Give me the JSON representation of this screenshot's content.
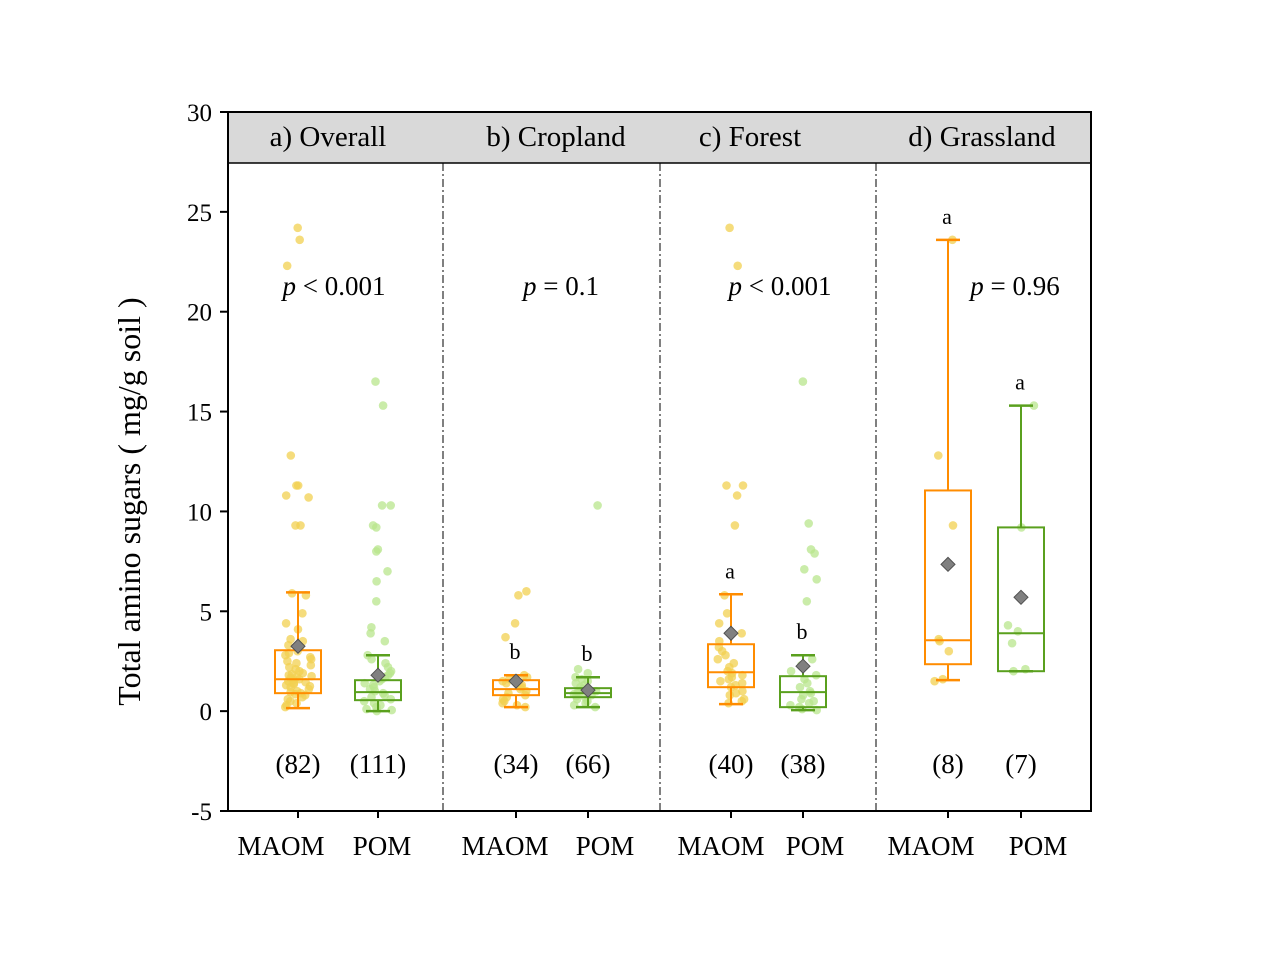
{
  "chart_data": {
    "type": "box",
    "ylabel": "Total amino sugars ( mg/g soil )",
    "ylim": [
      -5,
      30
    ],
    "yticks": [
      -5,
      0,
      5,
      10,
      15,
      20,
      25,
      30
    ],
    "ytick_labels": [
      "-5",
      "0",
      "5",
      "10",
      "15",
      "20",
      "25",
      "30"
    ],
    "colors": {
      "MAOM": "#ff8c00",
      "POM": "#5aa01e",
      "MAOM_points": "#f2d050",
      "POM_points": "#b8e68c",
      "mean_marker": "#808080",
      "header_bg": "#d9d9d9"
    },
    "panels": [
      {
        "title": "a) Overall",
        "pvalue_italic": "p",
        "pvalue_rest": " < 0.001",
        "groups": [
          {
            "label": "MAOM",
            "n": "(82)",
            "whisker_low": 0.15,
            "q1": 0.9,
            "median": 1.6,
            "q3": 3.05,
            "whisker_high": 5.95,
            "mean": 3.25,
            "letter": "",
            "points": [
              24.2,
              23.6,
              22.3,
              12.8,
              11.3,
              11.3,
              10.8,
              10.7,
              9.3,
              9.3,
              5.9,
              5.8,
              4.9,
              4.4,
              4.1,
              3.6,
              3.5,
              3.3,
              3.2,
              3.0,
              2.9,
              2.8,
              2.7,
              2.6,
              2.5,
              2.4,
              2.3,
              2.2,
              2.1,
              2.0,
              1.9,
              1.85,
              1.8,
              1.75,
              1.7,
              1.65,
              1.6,
              1.55,
              1.5,
              1.45,
              1.4,
              1.35,
              1.3,
              1.25,
              1.2,
              1.1,
              1.0,
              0.95,
              0.9,
              0.85,
              0.8,
              0.7,
              0.6,
              0.5,
              0.4,
              0.3,
              0.2
            ]
          },
          {
            "label": "POM",
            "n": "(111)",
            "whisker_low": 0.0,
            "q1": 0.55,
            "median": 0.95,
            "q3": 1.55,
            "whisker_high": 2.8,
            "mean": 1.8,
            "letter": "",
            "points": [
              16.5,
              15.3,
              10.3,
              10.3,
              9.3,
              9.2,
              8.1,
              8.0,
              7.0,
              6.5,
              5.5,
              4.2,
              3.9,
              3.5,
              2.8,
              2.6,
              2.4,
              2.2,
              2.0,
              1.9,
              1.8,
              1.7,
              1.6,
              1.5,
              1.4,
              1.3,
              1.2,
              1.1,
              1.0,
              0.9,
              0.8,
              0.7,
              0.6,
              0.5,
              0.4,
              0.3,
              0.2,
              0.1,
              0.05,
              0.0
            ]
          }
        ]
      },
      {
        "title": "b) Cropland",
        "pvalue_italic": "p",
        "pvalue_rest": " = 0.1",
        "groups": [
          {
            "label": "MAOM",
            "n": "(34)",
            "whisker_low": 0.2,
            "q1": 0.8,
            "median": 1.1,
            "q3": 1.55,
            "whisker_high": 1.8,
            "mean": 1.5,
            "letter": "b",
            "points": [
              6.0,
              5.8,
              4.4,
              3.7,
              1.8,
              1.7,
              1.6,
              1.5,
              1.4,
              1.3,
              1.2,
              1.1,
              1.0,
              0.9,
              0.8,
              0.7,
              0.6,
              0.5,
              0.4,
              0.3,
              0.2
            ]
          },
          {
            "label": "POM",
            "n": "(66)",
            "whisker_low": 0.2,
            "q1": 0.7,
            "median": 0.9,
            "q3": 1.15,
            "whisker_high": 1.7,
            "mean": 1.05,
            "letter": "b",
            "points": [
              10.3,
              2.1,
              1.9,
              1.7,
              1.6,
              1.5,
              1.4,
              1.3,
              1.2,
              1.1,
              1.0,
              0.95,
              0.9,
              0.85,
              0.8,
              0.75,
              0.7,
              0.6,
              0.5,
              0.4,
              0.3,
              0.2
            ]
          }
        ]
      },
      {
        "title": "c) Forest",
        "pvalue_italic": "p",
        "pvalue_rest": " < 0.001",
        "groups": [
          {
            "label": "MAOM",
            "n": "(40)",
            "whisker_low": 0.35,
            "q1": 1.2,
            "median": 1.95,
            "q3": 3.35,
            "whisker_high": 5.85,
            "mean": 3.9,
            "letter": "a",
            "points": [
              24.2,
              22.3,
              11.3,
              11.3,
              10.8,
              9.3,
              5.8,
              4.9,
              4.4,
              3.9,
              3.5,
              3.2,
              3.0,
              2.8,
              2.6,
              2.4,
              2.2,
              2.0,
              1.9,
              1.8,
              1.7,
              1.6,
              1.5,
              1.4,
              1.3,
              1.2,
              1.0,
              0.9,
              0.8,
              0.6,
              0.5,
              0.4
            ]
          },
          {
            "label": "POM",
            "n": "(38)",
            "whisker_low": 0.05,
            "q1": 0.2,
            "median": 0.95,
            "q3": 1.75,
            "whisker_high": 2.8,
            "mean": 2.25,
            "letter": "b",
            "points": [
              16.5,
              9.4,
              8.1,
              7.9,
              7.1,
              6.6,
              5.5,
              2.6,
              2.3,
              2.0,
              1.8,
              1.6,
              1.4,
              1.2,
              1.0,
              0.9,
              0.8,
              0.6,
              0.5,
              0.4,
              0.3,
              0.2,
              0.1,
              0.05
            ]
          }
        ]
      },
      {
        "title": "d) Grassland",
        "pvalue_italic": "p",
        "pvalue_rest": " = 0.96",
        "groups": [
          {
            "label": "MAOM",
            "n": "(8)",
            "whisker_low": 1.55,
            "q1": 2.35,
            "median": 3.55,
            "q3": 11.05,
            "whisker_high": 23.6,
            "mean": 7.35,
            "letter": "a",
            "points": [
              23.6,
              12.8,
              9.3,
              3.6,
              3.5,
              3.0,
              1.6,
              1.5
            ]
          },
          {
            "label": "POM",
            "n": "(7)",
            "whisker_low": 2.0,
            "q1": 2.0,
            "median": 3.9,
            "q3": 9.2,
            "whisker_high": 15.3,
            "mean": 5.7,
            "letter": "a",
            "points": [
              15.3,
              9.2,
              4.3,
              4.0,
              3.4,
              2.1,
              2.0
            ]
          }
        ]
      }
    ]
  }
}
